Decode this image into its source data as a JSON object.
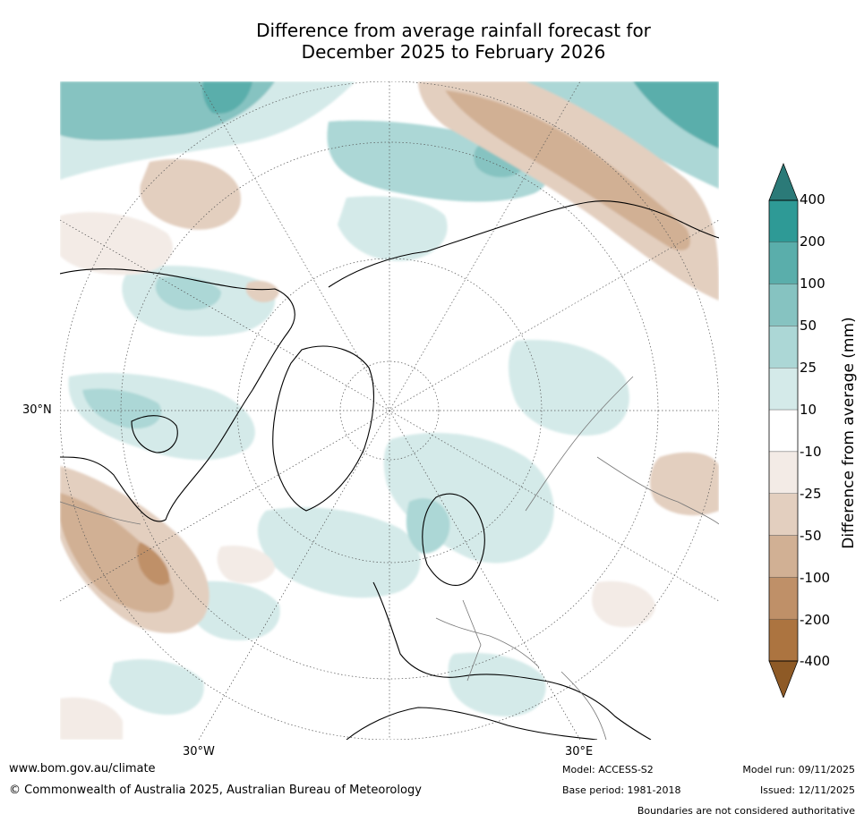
{
  "title": {
    "line1": "Difference from average rainfall forecast for",
    "line2": "December 2025 to February 2026"
  },
  "map": {
    "projection": "north-polar-stereographic",
    "lat_labels": [
      "30°N"
    ],
    "lon_labels": [
      "30°W",
      "30°E"
    ]
  },
  "colorbar": {
    "title": "Difference from average (mm)",
    "tick_labels": [
      "400",
      "200",
      "100",
      "50",
      "25",
      "10",
      "-10",
      "-25",
      "-50",
      "-100",
      "-200",
      "-400"
    ],
    "bands": [
      {
        "from": 200,
        "to": 400,
        "color": "#2e9a96"
      },
      {
        "from": 100,
        "to": 200,
        "color": "#5aaeab"
      },
      {
        "from": 50,
        "to": 100,
        "color": "#86c3c1"
      },
      {
        "from": 25,
        "to": 50,
        "color": "#acd7d6"
      },
      {
        "from": 10,
        "to": 25,
        "color": "#d4eae9"
      },
      {
        "from": -10,
        "to": 10,
        "color": "#ffffff"
      },
      {
        "from": -25,
        "to": -10,
        "color": "#f3ebe6"
      },
      {
        "from": -50,
        "to": -25,
        "color": "#e3cfbf"
      },
      {
        "from": -100,
        "to": -50,
        "color": "#d1b094"
      },
      {
        "from": -200,
        "to": -100,
        "color": "#bf9068"
      },
      {
        "from": -400,
        "to": -200,
        "color": "#ac7440"
      }
    ],
    "over_color": "#2b7a78",
    "under_color": "#8e5a26"
  },
  "footer": {
    "website": "www.bom.gov.au/climate",
    "copyright": "© Commonwealth of Australia 2025, Australian Bureau of Meteorology",
    "model": "Model: ACCESS-S2",
    "base_period": "Base period: 1981-2018",
    "model_run": "Model run: 09/11/2025",
    "issued": "Issued: 12/11/2025",
    "disclaimer": "Boundaries are not considered authoritative"
  }
}
